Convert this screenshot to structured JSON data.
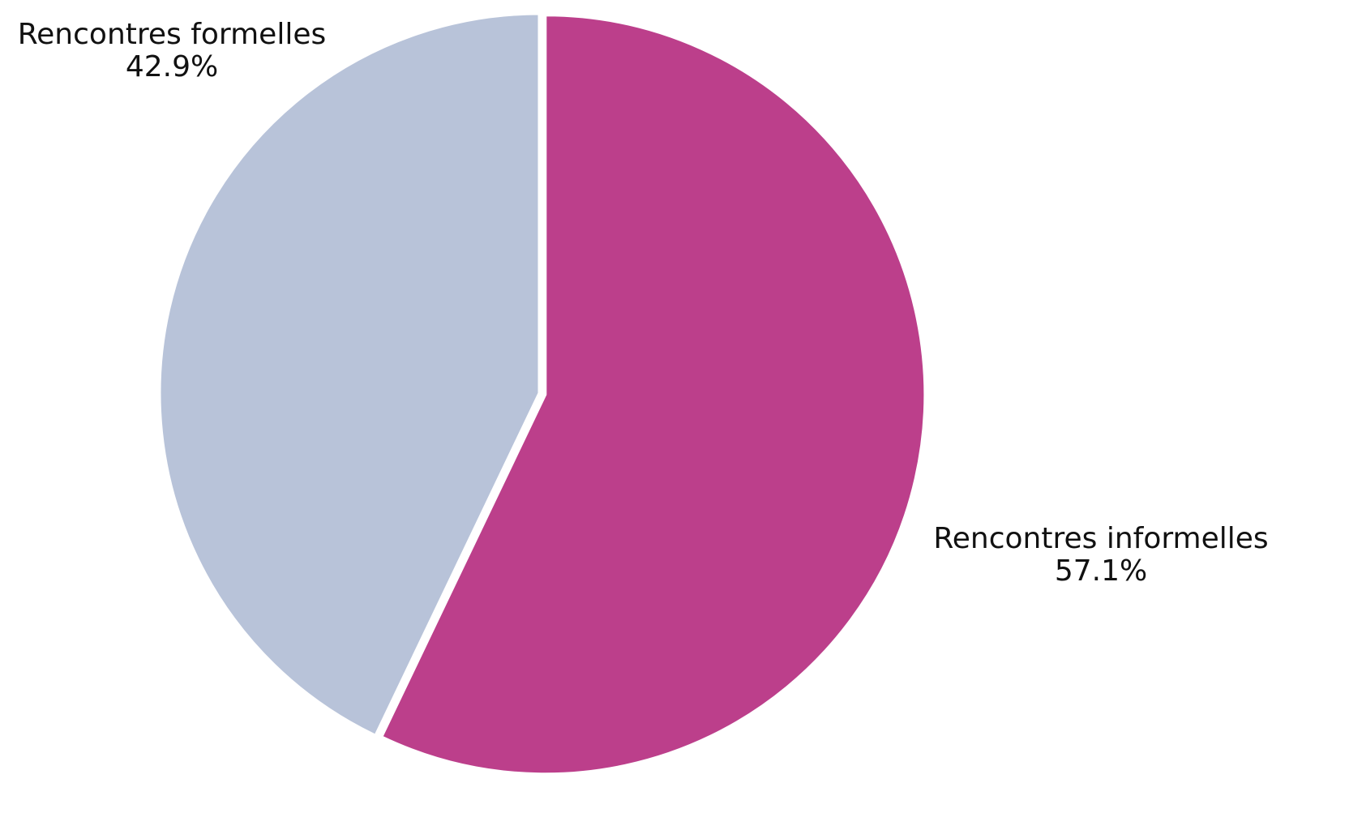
{
  "chart_data": {
    "type": "pie",
    "title": "",
    "slices": [
      {
        "label": "Rencontres informelles",
        "value": 57.1,
        "value_label": "57.1%",
        "color": "#bc3f8b",
        "exploded": true
      },
      {
        "label": "Rencontres formelles",
        "value": 42.9,
        "value_label": "42.9%",
        "color": "#b8c3d9",
        "exploded": false
      }
    ],
    "start_angle_deg": 90,
    "direction": "clockwise",
    "legend": "none",
    "label_position": "outside"
  }
}
